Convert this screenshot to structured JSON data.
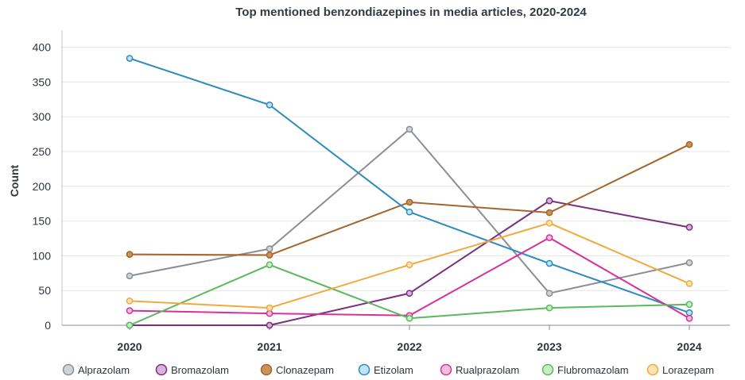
{
  "chart_data": {
    "type": "line",
    "title": "Top mentioned benzondiazepines in media articles, 2020-2024",
    "xlabel": "",
    "ylabel": "Count",
    "x": [
      "2020",
      "2021",
      "2022",
      "2023",
      "2024"
    ],
    "ylim": [
      0,
      420
    ],
    "yticks": [
      0,
      50,
      100,
      150,
      200,
      250,
      300,
      350,
      400
    ],
    "grid": true,
    "legend_position": "bottom",
    "series": [
      {
        "name": "Alprazolam",
        "color": "#8a8f96",
        "values": [
          71,
          110,
          282,
          46,
          90
        ]
      },
      {
        "name": "Bromazolam",
        "color": "#7b2d7f",
        "values": [
          0,
          0,
          46,
          179,
          141
        ]
      },
      {
        "name": "Clonazepam",
        "color": "#a5652a",
        "values": [
          102,
          101,
          177,
          162,
          260
        ]
      },
      {
        "name": "Etizolam",
        "color": "#2a8bc0",
        "values": [
          384,
          317,
          163,
          89,
          18
        ]
      },
      {
        "name": "Rualprazolam",
        "color": "#d6309a",
        "values": [
          21,
          17,
          14,
          126,
          10
        ]
      },
      {
        "name": "Flubromazolam",
        "color": "#5cb85c",
        "values": [
          0,
          87,
          10,
          25,
          30
        ]
      },
      {
        "name": "Lorazepam",
        "color": "#f2a93b",
        "values": [
          35,
          25,
          87,
          147,
          60
        ]
      }
    ],
    "fills": {
      "Alprazolam": "#d0d3d7",
      "Bromazolam": "#d7b3d9",
      "Clonazepam": "#c99458",
      "Etizolam": "#bfe4f5",
      "Rualprazolam": "#f6bfe0",
      "Flubromazolam": "#c8eec8",
      "Lorazepam": "#fde3b5"
    }
  }
}
